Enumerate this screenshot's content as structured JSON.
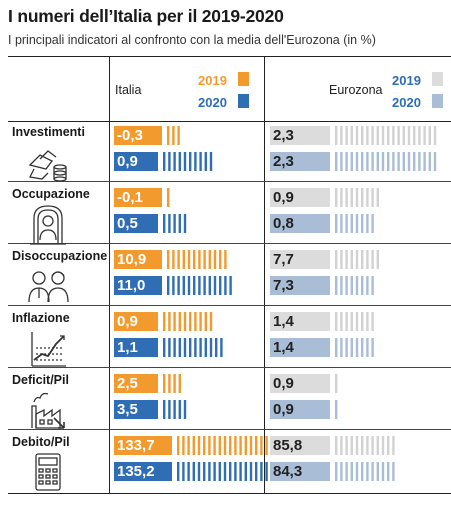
{
  "title": "I numeri dell’Italia per il 2019-2020",
  "subtitle": "I principali indicatori al confronto con la media dell'Eurozona (in %)",
  "columns": {
    "italia": "Italia",
    "eurozona": "Eurozona"
  },
  "legend": {
    "year_2019": "2019",
    "year_2020": "2020"
  },
  "colors": {
    "italia_2019": "#f39a2e",
    "italia_2020": "#2f6db5",
    "euro_2019": "#dcdcdc",
    "euro_2020": "#a9bdd6"
  },
  "chart_data": {
    "type": "bar",
    "title": "I numeri dell’Italia per il 2019-2020",
    "subtitle": "I principali indicatori al confronto con la media dell'Eurozona (in %)",
    "categories": [
      "Investimenti",
      "Occupazione",
      "Disoccupazione",
      "Inflazione",
      "Deficit/Pil",
      "Debito/Pil"
    ],
    "category_icons": [
      "money-hand-icon",
      "person-frame-icon",
      "two-people-icon",
      "line-chart-icon",
      "factory-icon",
      "calculator-icon"
    ],
    "series": [
      {
        "name": "Italia 2019",
        "values": [
          "-0,3",
          "-0,1",
          "10,9",
          "0,9",
          "2,5",
          "133,7"
        ]
      },
      {
        "name": "Italia 2020",
        "values": [
          "0,9",
          "0,5",
          "11,0",
          "1,1",
          "3,5",
          "135,2"
        ]
      },
      {
        "name": "Eurozona 2019",
        "values": [
          "2,3",
          "0,9",
          "7,7",
          "1,4",
          "0,9",
          "85,8"
        ]
      },
      {
        "name": "Eurozona 2020",
        "values": [
          "2,3",
          "0,8",
          "7,3",
          "1,4",
          "0,9",
          "84,3"
        ]
      }
    ],
    "tick_counts": {
      "italia_2019": [
        3,
        1,
        12,
        10,
        4,
        20
      ],
      "italia_2020": [
        10,
        5,
        13,
        12,
        5,
        20
      ],
      "euro_2019": [
        20,
        9,
        9,
        8,
        1,
        12
      ],
      "euro_2020": [
        20,
        8,
        8,
        8,
        1,
        12
      ]
    }
  }
}
